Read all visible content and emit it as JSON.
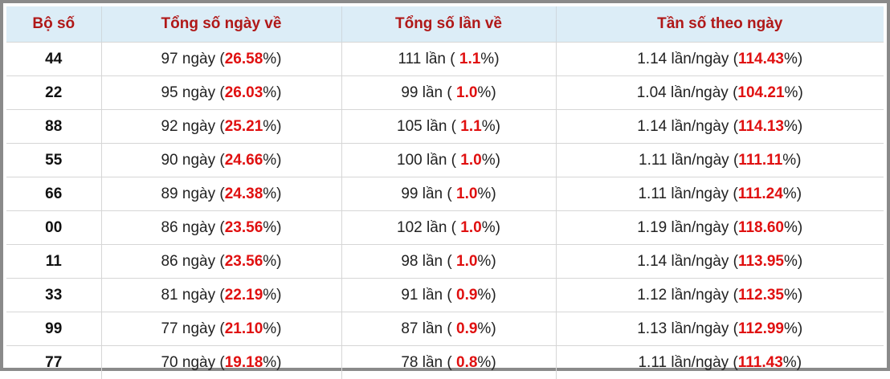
{
  "table": {
    "header": [
      "Bộ số",
      "Tổng số ngày về",
      "Tổng số lần về",
      "Tần số theo ngày"
    ],
    "rows": [
      [
        "44",
        [
          "97 ngày (",
          "26.58",
          "%)"
        ],
        [
          "111 lần ( ",
          "1.1",
          "%)"
        ],
        [
          "1.14 lần/ngày (",
          "114.43",
          "%)"
        ]
      ],
      [
        "22",
        [
          "95 ngày (",
          "26.03",
          "%)"
        ],
        [
          "99 lần ( ",
          "1.0",
          "%)"
        ],
        [
          "1.04 lần/ngày (",
          "104.21",
          "%)"
        ]
      ],
      [
        "88",
        [
          "92 ngày (",
          "25.21",
          "%)"
        ],
        [
          "105 lần ( ",
          "1.1",
          "%)"
        ],
        [
          "1.14 lần/ngày (",
          "114.13",
          "%)"
        ]
      ],
      [
        "55",
        [
          "90 ngày (",
          "24.66",
          "%)"
        ],
        [
          "100 lần ( ",
          "1.0",
          "%)"
        ],
        [
          "1.11 lần/ngày (",
          "111.11",
          "%)"
        ]
      ],
      [
        "66",
        [
          "89 ngày (",
          "24.38",
          "%)"
        ],
        [
          "99 lần ( ",
          "1.0",
          "%)"
        ],
        [
          "1.11 lần/ngày (",
          "111.24",
          "%)"
        ]
      ],
      [
        "00",
        [
          "86 ngày (",
          "23.56",
          "%)"
        ],
        [
          "102 lần ( ",
          "1.0",
          "%)"
        ],
        [
          "1.19 lần/ngày (",
          "118.60",
          "%)"
        ]
      ],
      [
        "11",
        [
          "86 ngày (",
          "23.56",
          "%)"
        ],
        [
          "98 lần ( ",
          "1.0",
          "%)"
        ],
        [
          "1.14 lần/ngày (",
          "113.95",
          "%)"
        ]
      ],
      [
        "33",
        [
          "81 ngày (",
          "22.19",
          "%)"
        ],
        [
          "91 lần ( ",
          "0.9",
          "%)"
        ],
        [
          "1.12 lần/ngày (",
          "112.35",
          "%)"
        ]
      ],
      [
        "99",
        [
          "77 ngày (",
          "21.10",
          "%)"
        ],
        [
          "87 lần ( ",
          "0.9",
          "%)"
        ],
        [
          "1.13 lần/ngày (",
          "112.99",
          "%)"
        ]
      ],
      [
        "77",
        [
          "70 ngày (",
          "19.18",
          "%)"
        ],
        [
          "78 lần ( ",
          "0.8",
          "%)"
        ],
        [
          "1.11 lần/ngày (",
          "111.43",
          "%)"
        ]
      ]
    ]
  }
}
